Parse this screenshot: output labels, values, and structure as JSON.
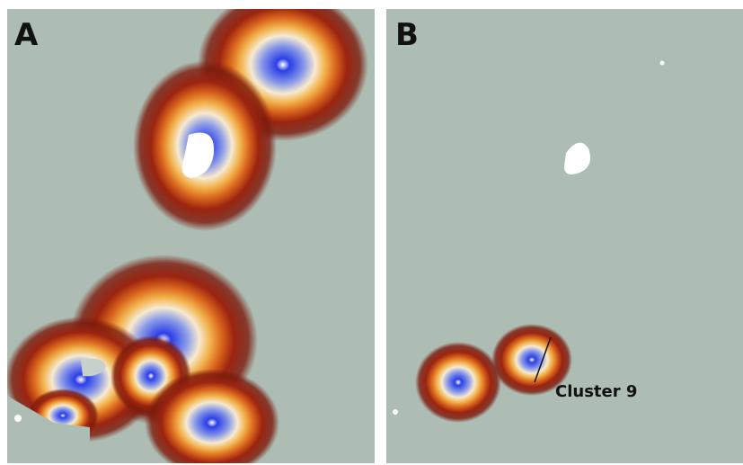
{
  "panels": [
    {
      "label": "A"
    },
    {
      "label": "B",
      "annotation": "Cluster 9"
    }
  ]
}
